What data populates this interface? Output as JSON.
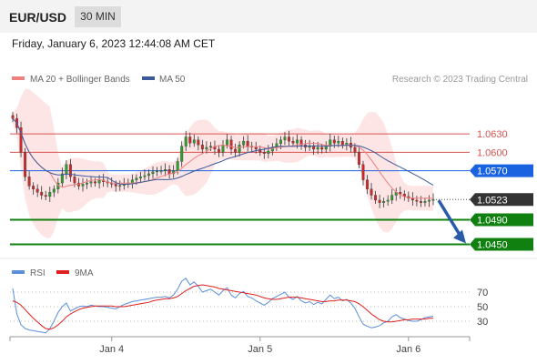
{
  "header": {
    "symbol": "EUR/USD",
    "timeframe": "30 MIN",
    "datetime": "Friday, January 6, 2023 12:44:08 AM CET"
  },
  "legend": {
    "ma20_label": "MA 20 + Bollinger Bands",
    "ma50_label": "MA 50",
    "credit": "Research © 2023 Trading Central",
    "ma20_color": "#f08080",
    "ma50_color": "#3c5a9a"
  },
  "chart_data": [
    {
      "type": "candlestick",
      "price_range": [
        1.043,
        1.0685
      ],
      "levels": [
        {
          "value": 1.063,
          "label": "1.0630",
          "kind": "resistance",
          "color": "#d9534f"
        },
        {
          "value": 1.06,
          "label": "1.0600",
          "kind": "resistance",
          "color": "#d9534f"
        },
        {
          "value": 1.057,
          "label": "1.0570",
          "kind": "pivot",
          "color": "#1a63e0"
        },
        {
          "value": 1.049,
          "label": "1.0490",
          "kind": "support",
          "color": "#108010"
        },
        {
          "value": 1.045,
          "label": "1.0450",
          "kind": "support",
          "color": "#108010"
        }
      ],
      "last_price": {
        "value": 1.0523,
        "label": "1.0523",
        "color": "#333333"
      },
      "closes": [
        1.0655,
        1.064,
        1.06,
        1.056,
        1.0545,
        1.054,
        1.0535,
        1.053,
        1.0528,
        1.0535,
        1.054,
        1.055,
        1.0565,
        1.058,
        1.056,
        1.055,
        1.0545,
        1.0548,
        1.055,
        1.0552,
        1.055,
        1.0555,
        1.0552,
        1.055,
        1.0548,
        1.0545,
        1.0546,
        1.0548,
        1.055,
        1.0555,
        1.0558,
        1.056,
        1.0562,
        1.0565,
        1.0568,
        1.057,
        1.057,
        1.0572,
        1.0565,
        1.057,
        1.0585,
        1.061,
        1.0625,
        1.0615,
        1.062,
        1.0612,
        1.0605,
        1.0608,
        1.061,
        1.0605,
        1.06,
        1.0612,
        1.062,
        1.0605,
        1.06,
        1.0612,
        1.0618,
        1.061,
        1.0608,
        1.0605,
        1.06,
        1.0598,
        1.0602,
        1.0608,
        1.0614,
        1.062,
        1.0625,
        1.0618,
        1.0615,
        1.062,
        1.0612,
        1.0608,
        1.061,
        1.0605,
        1.0608,
        1.0605,
        1.061,
        1.062,
        1.0615,
        1.0618,
        1.0612,
        1.0615,
        1.0608,
        1.06,
        1.058,
        1.0555,
        1.054,
        1.053,
        1.0522,
        1.0518,
        1.052,
        1.0522,
        1.053,
        1.0535,
        1.0532,
        1.0528,
        1.0525,
        1.0522,
        1.052,
        1.0518,
        1.052,
        1.0522,
        1.0523
      ],
      "x_ticks": [
        {
          "label": "Jan 4",
          "index": 24
        },
        {
          "label": "Jan 5",
          "index": 60
        },
        {
          "label": "Jan 6",
          "index": 96
        }
      ],
      "forecast": {
        "from": 1.0523,
        "to": 1.045,
        "direction": "down",
        "color": "#2a5ba8"
      }
    },
    {
      "type": "line",
      "legend": [
        {
          "name": "RSI",
          "color": "#5b8fd9"
        },
        {
          "name": "9MA",
          "color": "#e02020"
        }
      ],
      "y_ticks": [
        "70",
        "50",
        "30"
      ],
      "y_range": [
        0,
        100
      ],
      "rsi": [
        75,
        40,
        25,
        20,
        18,
        17,
        16,
        15,
        14,
        20,
        30,
        42,
        50,
        55,
        44,
        47,
        50,
        51,
        50,
        52,
        51,
        50,
        50,
        49,
        48,
        47,
        50,
        53,
        55,
        57,
        58,
        59,
        60,
        61,
        62,
        63,
        63,
        64,
        62,
        66,
        74,
        85,
        89,
        80,
        84,
        78,
        70,
        72,
        74,
        70,
        66,
        72,
        76,
        66,
        62,
        68,
        71,
        64,
        62,
        58,
        55,
        52,
        56,
        61,
        64,
        67,
        70,
        63,
        60,
        64,
        58,
        55,
        57,
        53,
        56,
        54,
        60,
        66,
        61,
        63,
        58,
        60,
        55,
        48,
        36,
        26,
        23,
        21,
        22,
        24,
        28,
        30,
        36,
        39,
        35,
        33,
        31,
        30,
        30,
        32,
        35,
        36,
        37
      ],
      "ma9": [
        58,
        56,
        52,
        46,
        40,
        34,
        29,
        24,
        20,
        19,
        21,
        25,
        30,
        36,
        40,
        43,
        46,
        48,
        49,
        50,
        51,
        51,
        51,
        51,
        51,
        50,
        50,
        50,
        51,
        52,
        53,
        54,
        55,
        56,
        58,
        59,
        60,
        61,
        61,
        62,
        64,
        68,
        72,
        75,
        78,
        79,
        80,
        79,
        78,
        77,
        75,
        74,
        73,
        72,
        71,
        70,
        69,
        68,
        67,
        66,
        64,
        62,
        61,
        60,
        60,
        61,
        62,
        63,
        63,
        63,
        62,
        61,
        60,
        59,
        58,
        57,
        57,
        58,
        58,
        59,
        59,
        59,
        58,
        57,
        54,
        50,
        45,
        40,
        36,
        32,
        30,
        29,
        29,
        30,
        31,
        32,
        32,
        33,
        33,
        33,
        33,
        34,
        34
      ]
    }
  ]
}
